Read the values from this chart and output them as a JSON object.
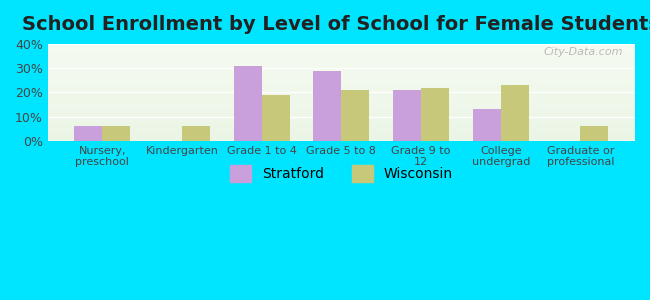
{
  "title": "School Enrollment by Level of School for Female Students",
  "categories": [
    "Nursery,\npreschool",
    "Kindergarten",
    "Grade 1 to 4",
    "Grade 5 to 8",
    "Grade 9 to\n12",
    "College\nundergrad",
    "Graduate or\nprofessional"
  ],
  "stratford": [
    6,
    0,
    31,
    29,
    21,
    13,
    0
  ],
  "wisconsin": [
    6,
    6,
    19,
    21,
    22,
    23,
    6
  ],
  "stratford_color": "#c9a0dc",
  "wisconsin_color": "#c8c87a",
  "background_outer": "#00e5ff",
  "ylim": [
    0,
    40
  ],
  "yticks": [
    0,
    10,
    20,
    30,
    40
  ],
  "ytick_labels": [
    "0%",
    "10%",
    "20%",
    "30%",
    "40%"
  ],
  "title_fontsize": 14,
  "legend_labels": [
    "Stratford",
    "Wisconsin"
  ],
  "bar_width": 0.35
}
